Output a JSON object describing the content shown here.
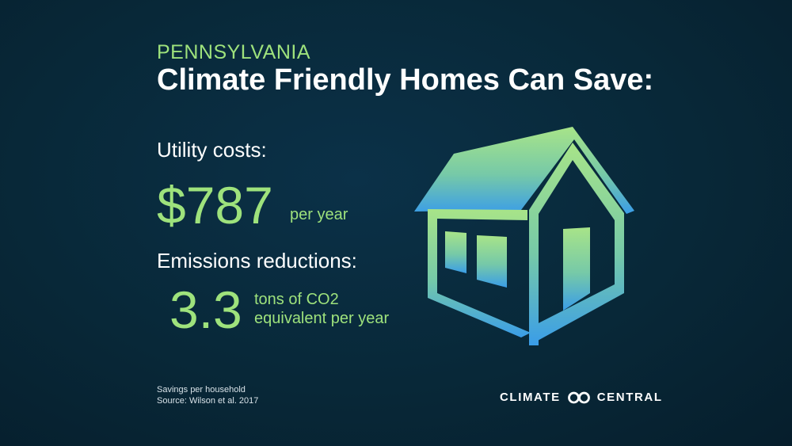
{
  "header": {
    "kicker": "PENNSYLVANIA",
    "title": "Climate Friendly Homes Can Save:"
  },
  "utility": {
    "label": "Utility costs:",
    "value": "$787",
    "unit": "per year"
  },
  "emissions": {
    "label": "Emissions reductions:",
    "value": "3.3",
    "unit_line1": "tons of CO2",
    "unit_line2": "equivalent per year"
  },
  "footnote": {
    "line1": "Savings per household",
    "line2": "Source: Wilson et al. 2017"
  },
  "brand": {
    "left_word": "CLIMATE",
    "right_word": "CENTRAL",
    "icon": "climate-central-logo-icon"
  },
  "illustration": {
    "icon": "house-icon"
  },
  "colors": {
    "background": "#082838",
    "accent_green": "#9ee27c",
    "accent_blue": "#3a9de8",
    "text": "#ffffff"
  }
}
